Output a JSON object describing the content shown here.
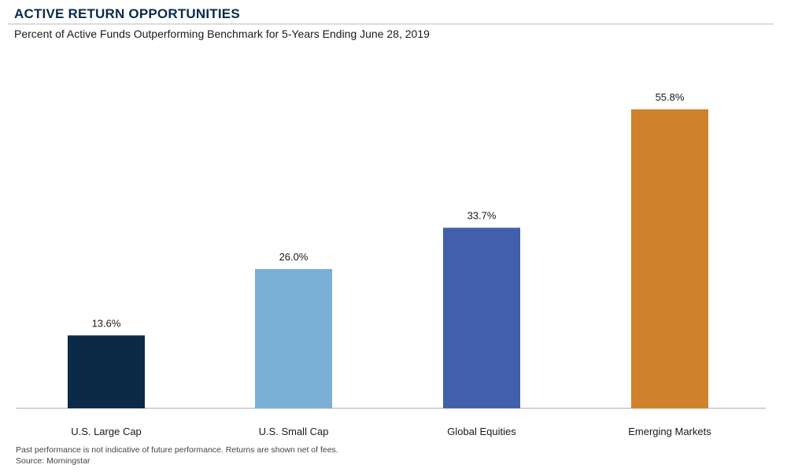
{
  "header": {
    "title": "ACTIVE RETURN OPPORTUNITIES",
    "subtitle": "Percent of Active Funds Outperforming Benchmark for 5-Years Ending June 28, 2019"
  },
  "footer": {
    "disclaimer": "Past performance is not indicative of future performance. Returns are shown net of fees.",
    "source": "Source: Morningstar"
  },
  "chart_data": {
    "type": "bar",
    "title": "ACTIVE RETURN OPPORTUNITIES",
    "subtitle": "Percent of Active Funds Outperforming Benchmark for 5-Years Ending June 28, 2019",
    "categories": [
      "U.S. Large Cap",
      "U.S. Small Cap",
      "Global Equities",
      "Emerging Markets"
    ],
    "values": [
      13.6,
      26.0,
      33.7,
      55.8
    ],
    "data_labels": [
      "13.6%",
      "26.0%",
      "33.7%",
      "55.8%"
    ],
    "colors": [
      "#0a2a47",
      "#7bafd6",
      "#425fac",
      "#cf812b"
    ],
    "xlabel": "",
    "ylabel": "",
    "ylim": [
      0,
      55.8
    ],
    "grid": false,
    "legend": "none"
  }
}
